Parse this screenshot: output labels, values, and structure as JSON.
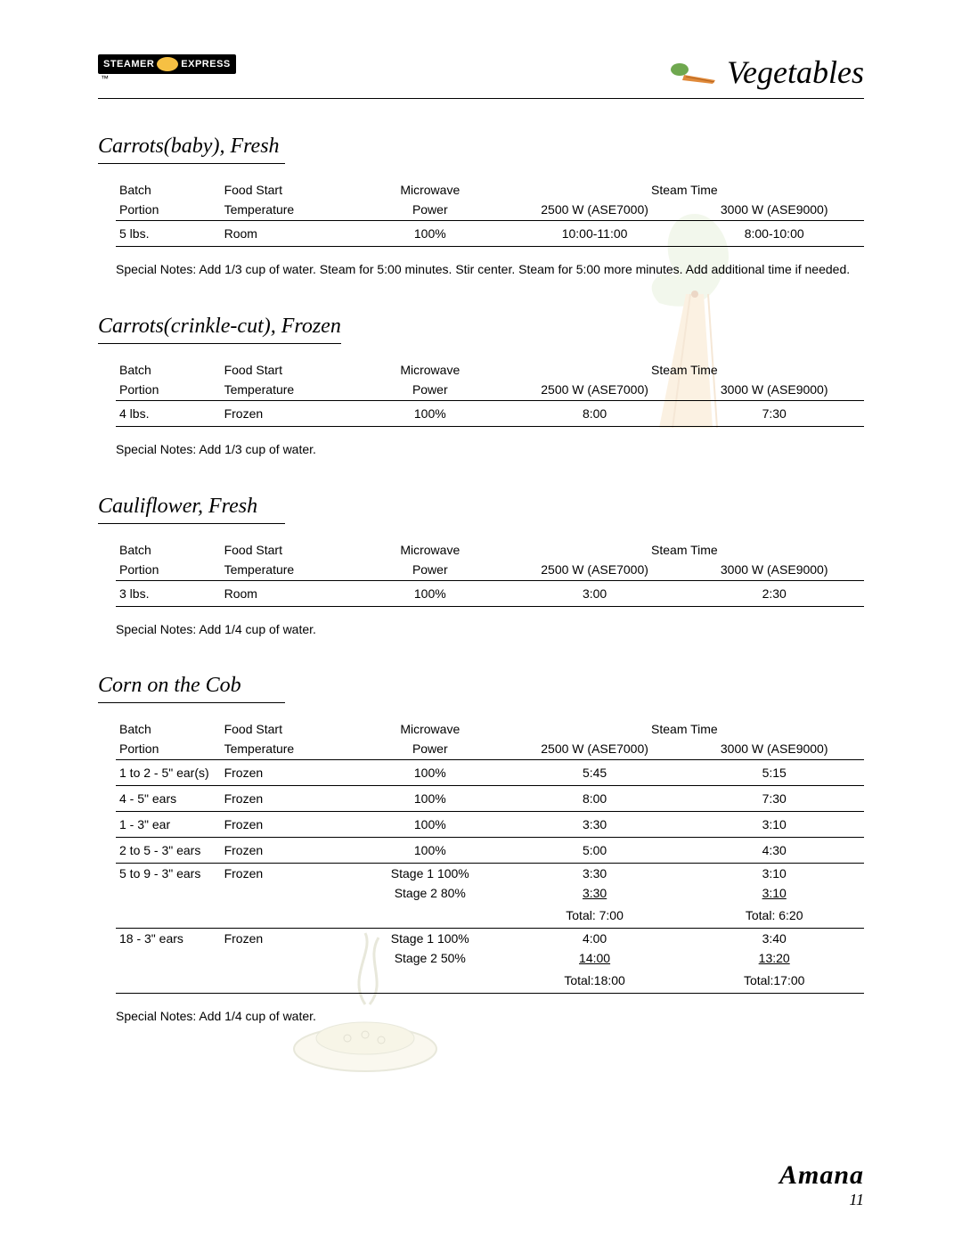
{
  "header": {
    "logo_left": "STEAMER",
    "logo_right": "EXPRESS",
    "tm": "™",
    "category": "Vegetables"
  },
  "tables": {
    "head1": {
      "batch": "Batch",
      "temp": "Food Start",
      "power": "Microwave",
      "steam": "Steam Time"
    },
    "head2": {
      "batch": "Portion",
      "temp": "Temperature",
      "power": "Power",
      "s1": "2500 W (ASE7000)",
      "s2": "3000 W (ASE9000)"
    }
  },
  "sections": [
    {
      "title": "Carrots(baby), Fresh",
      "rows": [
        {
          "batch": "5 lbs.",
          "temp": "Room",
          "power": "100%",
          "s1": "10:00-11:00",
          "s2": "8:00-10:00",
          "border": true
        }
      ],
      "notes": "Special Notes: Add 1/3 cup of water. Steam for 5:00 minutes. Stir center. Steam for 5:00 more minutes. Add additional time if needed."
    },
    {
      "title": "Carrots(crinkle-cut), Frozen",
      "rows": [
        {
          "batch": "4 lbs.",
          "temp": "Frozen",
          "power": "100%",
          "s1": "8:00",
          "s2": "7:30",
          "border": true
        }
      ],
      "notes": "Special Notes: Add 1/3 cup of water."
    },
    {
      "title": "Cauliflower, Fresh",
      "rows": [
        {
          "batch": "3 lbs.",
          "temp": "Room",
          "power": "100%",
          "s1": "3:00",
          "s2": "2:30",
          "border": true
        }
      ],
      "notes": "Special Notes: Add 1/4 cup of water."
    },
    {
      "title": "Corn on the Cob",
      "rows": [
        {
          "batch": "1 to 2 - 5\" ear(s)",
          "temp": "Frozen",
          "power": "100%",
          "s1": "5:45",
          "s2": "5:15",
          "border": true
        },
        {
          "batch": "4 - 5\" ears",
          "temp": "Frozen",
          "power": "100%",
          "s1": "8:00",
          "s2": "7:30",
          "border": true
        },
        {
          "batch": "1 -  3\" ear",
          "temp": "Frozen",
          "power": "100%",
          "s1": "3:30",
          "s2": "3:10",
          "border": true
        },
        {
          "batch": "2 to 5 -  3\" ears",
          "temp": "Frozen",
          "power": "100%",
          "s1": "5:00",
          "s2": "4:30",
          "border": true
        },
        {
          "batch": "5 to 9 - 3\" ears",
          "temp": "Frozen",
          "power": "Stage 1 100%",
          "s1": "3:30",
          "s2": "3:10",
          "border": false
        },
        {
          "batch": "",
          "temp": "",
          "power": "Stage 2  80%",
          "s1": "3:30",
          "s2": "3:10",
          "border": false,
          "ul": true
        },
        {
          "batch": "",
          "temp": "",
          "power": "",
          "s1": "Total: 7:00",
          "s2": "Total: 6:20",
          "border": true
        },
        {
          "batch": "18 - 3\" ears",
          "temp": "Frozen",
          "power": "Stage 1 100%",
          "s1": "4:00",
          "s2": "3:40",
          "border": false
        },
        {
          "batch": "",
          "temp": "",
          "power": "Stage 2  50%",
          "s1": "14:00",
          "s2": "13:20",
          "border": false,
          "ul": true
        },
        {
          "batch": "",
          "temp": "",
          "power": "",
          "s1": "Total:18:00",
          "s2": "Total:17:00",
          "border": true
        }
      ],
      "notes": "Special Notes: Add 1/4 cup of water."
    }
  ],
  "footer": {
    "brand": "Amana",
    "page": "11"
  }
}
